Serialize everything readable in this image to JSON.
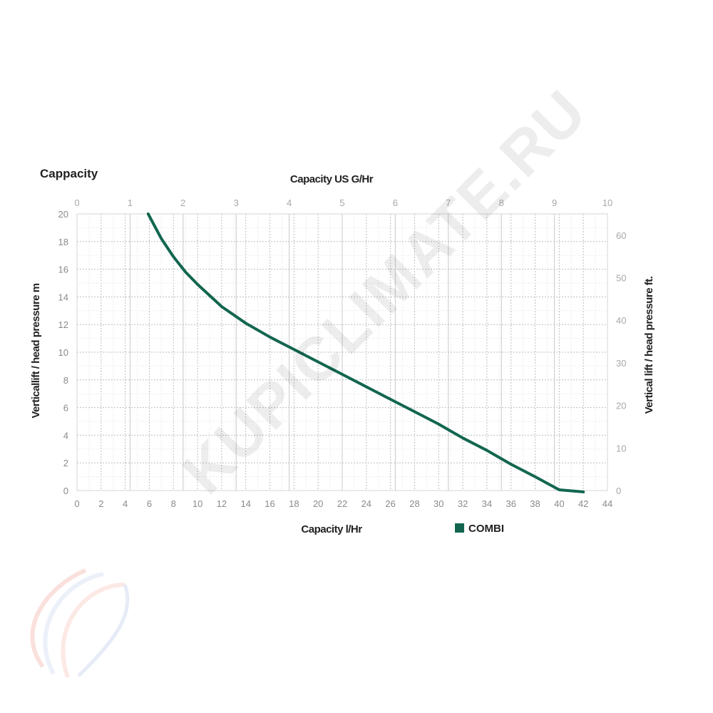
{
  "chart_data": {
    "type": "line",
    "title": "Cappacity",
    "xlabel": "Capacity l/Hr",
    "x2label": "Capacity US G/Hr",
    "ylabel": "Verticallift  / head pressure m",
    "y2label": "Vertical lift  / head pressure ft.",
    "xlim": [
      0,
      44
    ],
    "ylim": [
      0,
      20
    ],
    "x2lim": [
      0,
      10
    ],
    "y2lim": [
      0,
      65
    ],
    "x_ticks": [
      "0",
      "2",
      "4",
      "6",
      "8",
      "10",
      "12",
      "14",
      "16",
      "18",
      "20",
      "22",
      "24",
      "26",
      "28",
      "30",
      "32",
      "34",
      "36",
      "38",
      "40",
      "42",
      "44"
    ],
    "x2_ticks": [
      "0",
      "1",
      "2",
      "3",
      "4",
      "5",
      "6",
      "7",
      "8",
      "9",
      "10"
    ],
    "y_ticks": [
      "0",
      "2",
      "4",
      "6",
      "8",
      "10",
      "12",
      "14",
      "16",
      "18",
      "20"
    ],
    "y2_ticks": [
      "0",
      "10",
      "20",
      "30",
      "40",
      "50",
      "60"
    ],
    "grid": true,
    "legend_position": "bottom-right",
    "series": [
      {
        "name": "COMBI",
        "color": "#12664f",
        "x": [
          5.9,
          7,
          8,
          9,
          10,
          12,
          14,
          16,
          18,
          20,
          22,
          24,
          26,
          28,
          30,
          32,
          34,
          36,
          38,
          40,
          42
        ],
        "y": [
          20,
          18.2,
          16.9,
          15.8,
          14.9,
          13.3,
          12.1,
          11.1,
          10.2,
          9.3,
          8.4,
          7.5,
          6.6,
          5.7,
          4.8,
          3.8,
          2.9,
          1.9,
          1.0,
          0.05,
          -0.1
        ]
      }
    ]
  },
  "watermark": "KUPICLIMATE.RU"
}
